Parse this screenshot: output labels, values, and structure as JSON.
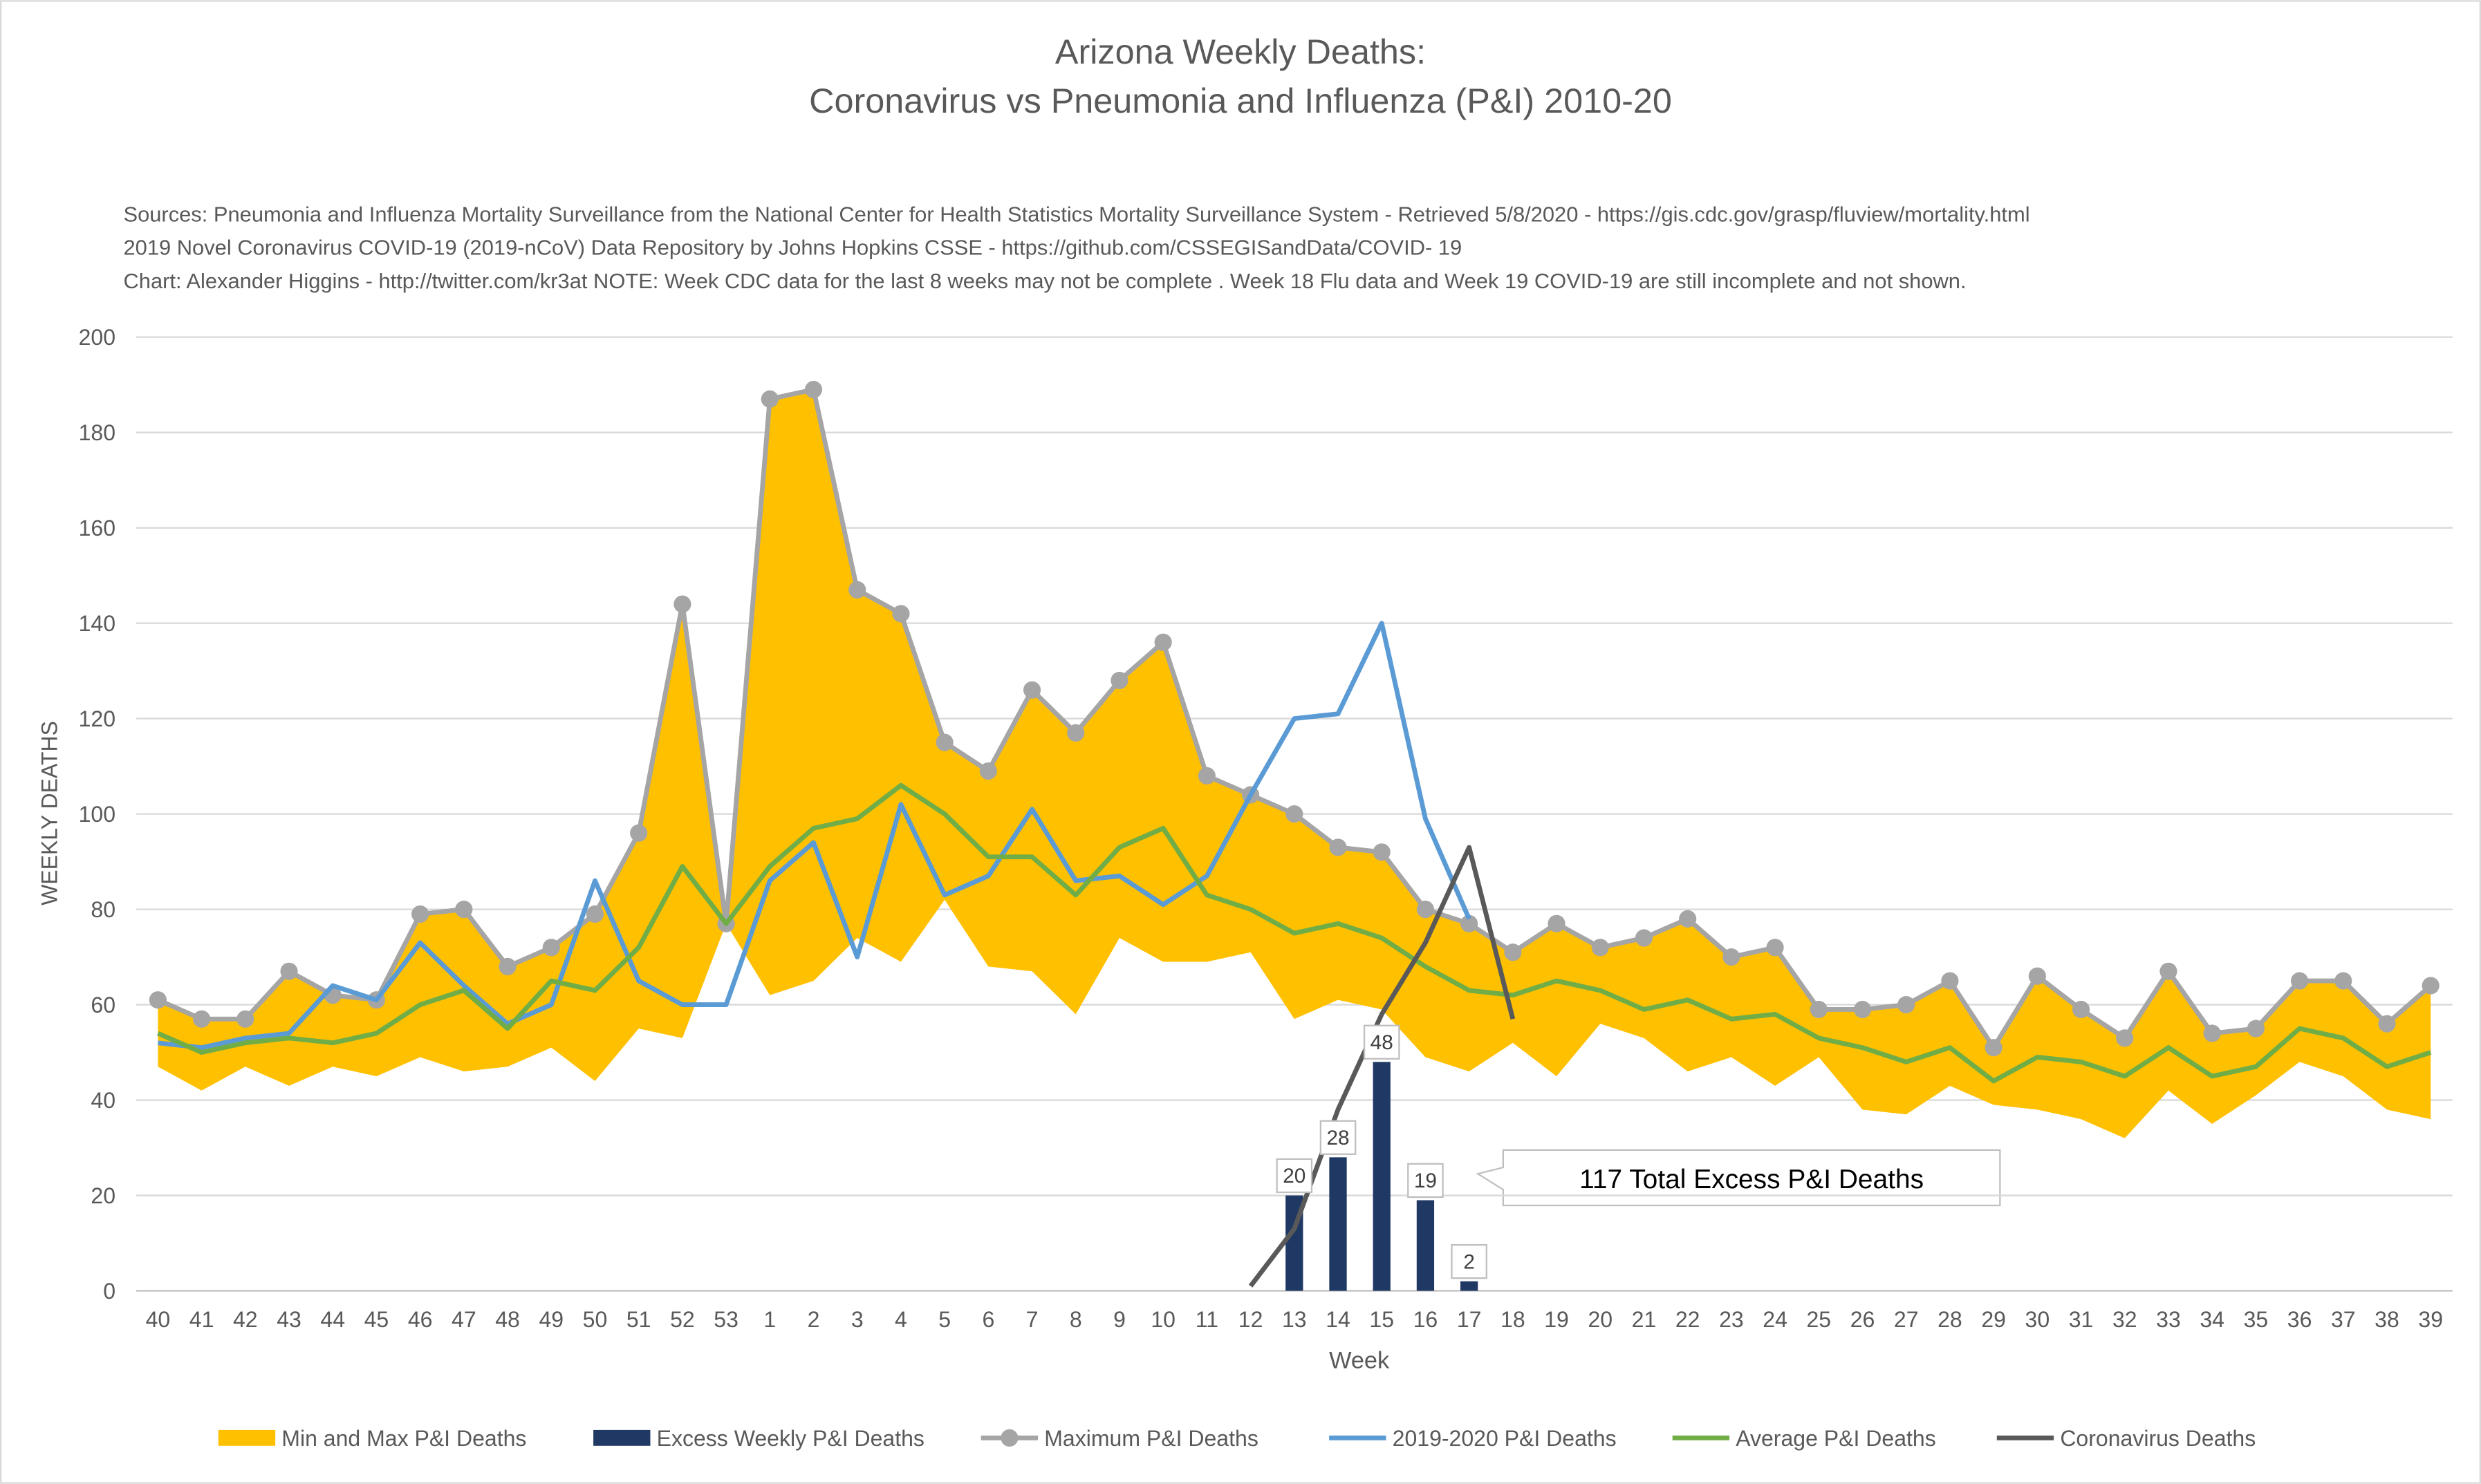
{
  "chart_data": {
    "type": "line",
    "title": "Arizona Weekly Deaths:",
    "subtitle": "Coronavirus vs Pneumonia and Influenza (P&I) 2010-20",
    "notes": [
      "Sources: Pneumonia and Influenza Mortality Surveillance from the National Center for Health Statistics Mortality Surveillance System - Retrieved 5/8/2020 - https://gis.cdc.gov/grasp/fluview/mortality.html",
      "2019 Novel Coronavirus COVID-19 (2019-nCoV) Data Repository by Johns Hopkins CSSE - https://github.com/CSSEGISandData/COVID- 19",
      "Chart: Alexander Higgins - http://twitter.com/kr3at   NOTE: Week CDC data for the last 8 weeks may not be complete . Week 18 Flu data and Week 19 COVID-19 are still incomplete and not shown."
    ],
    "x_label": "Week",
    "y_label": "WEEKLY DEATHS",
    "annotation": "117 Total Excess P&I Deaths",
    "categories": [
      "40",
      "41",
      "42",
      "43",
      "44",
      "45",
      "46",
      "47",
      "48",
      "49",
      "50",
      "51",
      "52",
      "53",
      "1",
      "2",
      "3",
      "4",
      "5",
      "6",
      "7",
      "8",
      "9",
      "10",
      "11",
      "12",
      "13",
      "14",
      "15",
      "16",
      "17",
      "18",
      "19",
      "20",
      "21",
      "22",
      "23",
      "24",
      "25",
      "26",
      "27",
      "28",
      "29",
      "30",
      "31",
      "32",
      "33",
      "34",
      "35",
      "36",
      "37",
      "38",
      "39"
    ],
    "ylim": [
      0,
      200
    ],
    "yticks": [
      0,
      20,
      40,
      60,
      80,
      100,
      120,
      140,
      160,
      180,
      200
    ],
    "grid": true,
    "series": [
      {
        "name": "Min and Max P&I Deaths",
        "type": "area",
        "color": "#ffc000",
        "values": [
          47,
          42,
          47,
          43,
          47,
          45,
          49,
          46,
          47,
          51,
          44,
          55,
          53,
          77,
          62,
          65,
          74,
          69,
          82,
          68,
          67,
          58,
          74,
          69,
          69,
          71,
          57,
          61,
          59,
          49,
          46,
          52,
          45,
          56,
          53,
          46,
          49,
          43,
          49,
          38,
          37,
          43,
          39,
          38,
          36,
          32,
          42,
          35,
          41,
          48,
          45,
          38,
          36
        ]
      },
      {
        "name": "Excess Weekly P&I Deaths",
        "type": "bar",
        "color": "#203864",
        "values": [
          null,
          null,
          null,
          null,
          null,
          null,
          null,
          null,
          null,
          null,
          null,
          null,
          null,
          null,
          null,
          null,
          null,
          null,
          null,
          null,
          null,
          null,
          null,
          null,
          null,
          null,
          20,
          28,
          48,
          19,
          2,
          null,
          null,
          null,
          null,
          null,
          null,
          null,
          null,
          null,
          null,
          null,
          null,
          null,
          null,
          null,
          null,
          null,
          null,
          null,
          null,
          null,
          null
        ]
      },
      {
        "name": "Maximum P&I Deaths",
        "type": "line",
        "markers": true,
        "color": "#a5a5a5",
        "values": [
          61,
          57,
          57,
          67,
          62,
          61,
          79,
          80,
          68,
          72,
          79,
          96,
          144,
          77,
          187,
          189,
          147,
          142,
          115,
          109,
          126,
          117,
          128,
          136,
          108,
          104,
          100,
          93,
          92,
          80,
          77,
          71,
          77,
          72,
          74,
          78,
          70,
          72,
          59,
          59,
          60,
          65,
          51,
          66,
          59,
          53,
          67,
          54,
          55,
          65,
          65,
          56,
          64
        ]
      },
      {
        "name": "2019-2020 P&I Deaths",
        "type": "line",
        "color": "#5b9bd5",
        "values": [
          52,
          51,
          53,
          54,
          64,
          61,
          73,
          64,
          56,
          60,
          86,
          65,
          60,
          60,
          86,
          94,
          70,
          102,
          83,
          87,
          101,
          86,
          87,
          81,
          87,
          104,
          120,
          121,
          140,
          99,
          78,
          null,
          null,
          null,
          null,
          null,
          null,
          null,
          null,
          null,
          null,
          null,
          null,
          null,
          null,
          null,
          null,
          null,
          null,
          null,
          null,
          null,
          null
        ]
      },
      {
        "name": "Average P&I Deaths",
        "type": "line",
        "color": "#70ad47",
        "values": [
          54,
          50,
          52,
          53,
          52,
          54,
          60,
          63,
          55,
          65,
          63,
          72,
          89,
          77,
          89,
          97,
          99,
          106,
          100,
          91,
          91,
          83,
          93,
          97,
          83,
          80,
          75,
          77,
          74,
          68,
          63,
          62,
          65,
          63,
          59,
          61,
          57,
          58,
          53,
          51,
          48,
          51,
          44,
          49,
          48,
          45,
          51,
          45,
          47,
          55,
          53,
          47,
          50
        ]
      },
      {
        "name": "Coronavirus Deaths",
        "type": "line",
        "color": "#595959",
        "values": [
          null,
          null,
          null,
          null,
          null,
          null,
          null,
          null,
          null,
          null,
          null,
          null,
          null,
          null,
          null,
          null,
          null,
          null,
          null,
          null,
          null,
          null,
          null,
          null,
          null,
          1,
          13,
          38,
          58,
          73,
          93,
          57,
          null,
          null,
          null,
          null,
          null,
          null,
          null,
          null,
          null,
          null,
          null,
          null,
          null,
          null,
          null,
          null,
          null,
          null,
          null,
          null,
          null
        ]
      }
    ]
  }
}
